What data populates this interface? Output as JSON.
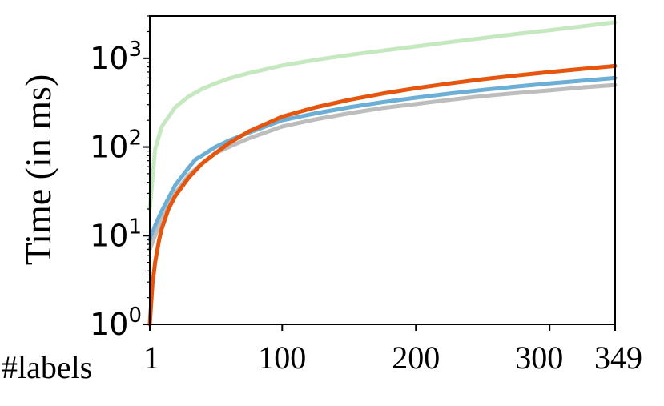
{
  "chart_data": {
    "type": "line",
    "xlabel": "#labels",
    "ylabel": "Time (in ms)",
    "y_scale": "log",
    "ylim": [
      1,
      3000
    ],
    "xlim": [
      1,
      349
    ],
    "x_ticks": [
      {
        "value": 1,
        "label": "1"
      },
      {
        "value": 100,
        "label": "100"
      },
      {
        "value": 200,
        "label": "200"
      },
      {
        "value": 300,
        "label": "300"
      },
      {
        "value": 349,
        "label": "349"
      }
    ],
    "y_ticks": [
      {
        "value": 1,
        "base": "10",
        "exp": "0"
      },
      {
        "value": 10,
        "base": "10",
        "exp": "1"
      },
      {
        "value": 100,
        "base": "10",
        "exp": "2"
      },
      {
        "value": 1000,
        "base": "10",
        "exp": "3"
      }
    ],
    "grid": false,
    "series": [
      {
        "color": "#c6e8c0",
        "x": [
          1,
          5,
          10,
          20,
          30,
          40,
          50,
          60,
          75,
          100,
          125,
          150,
          175,
          200,
          225,
          250,
          275,
          300,
          325,
          349
        ],
        "y": [
          20,
          95,
          170,
          280,
          370,
          450,
          520,
          590,
          680,
          830,
          960,
          1090,
          1220,
          1360,
          1520,
          1690,
          1880,
          2070,
          2300,
          2550
        ]
      },
      {
        "color": "#6baed6",
        "x": [
          1,
          5,
          10,
          20,
          30,
          35,
          40,
          50,
          60,
          75,
          100,
          125,
          150,
          175,
          200,
          225,
          250,
          275,
          300,
          325,
          349
        ],
        "y": [
          9,
          13,
          19,
          37,
          58,
          72,
          80,
          100,
          118,
          145,
          200,
          240,
          280,
          320,
          360,
          400,
          440,
          480,
          520,
          560,
          600
        ]
      },
      {
        "color": "#bdbdbd",
        "x": [
          1,
          5,
          10,
          20,
          30,
          40,
          50,
          60,
          75,
          100,
          125,
          150,
          175,
          200,
          225,
          250,
          275,
          300,
          325,
          349
        ],
        "y": [
          7,
          10,
          15,
          30,
          48,
          65,
          85,
          100,
          125,
          170,
          205,
          240,
          275,
          305,
          340,
          375,
          405,
          435,
          470,
          500
        ]
      },
      {
        "color": "#e6550d",
        "x": [
          1,
          3,
          5,
          8,
          10,
          15,
          20,
          30,
          40,
          50,
          60,
          75,
          100,
          125,
          150,
          175,
          200,
          225,
          250,
          275,
          300,
          325,
          349
        ],
        "y": [
          1,
          2.8,
          5,
          9,
          12,
          20,
          28,
          45,
          65,
          85,
          110,
          150,
          220,
          280,
          340,
          400,
          460,
          520,
          580,
          640,
          700,
          760,
          820
        ]
      }
    ]
  }
}
